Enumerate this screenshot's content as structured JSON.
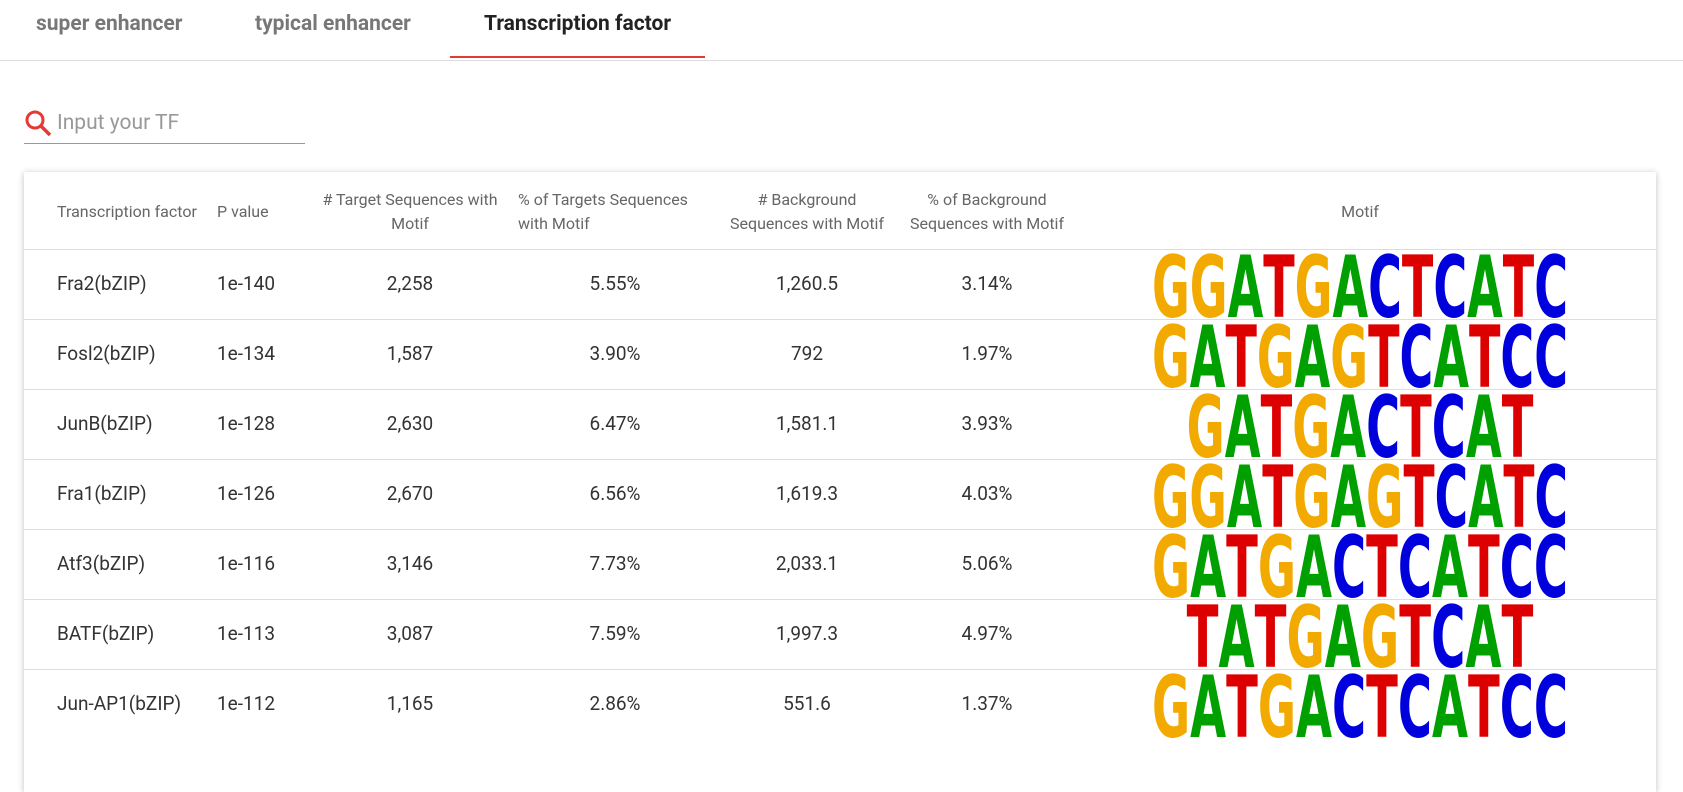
{
  "tabs": [
    {
      "label": "super enhancer",
      "active": false
    },
    {
      "label": "typical enhancer",
      "active": false
    },
    {
      "label": "Transcription factor",
      "active": true
    }
  ],
  "search": {
    "placeholder": "Input your TF"
  },
  "table": {
    "columns": [
      "Transcription factor",
      "P value",
      "# Target Sequences with Motif",
      "% of Targets Sequences with Motif",
      "# Background Sequences with Motif",
      "% of Background Sequences with Motif",
      "Motif"
    ],
    "rows": [
      [
        "Fra2(bZIP)",
        "1e-140",
        "2,258",
        "5.55%",
        "1,260.5",
        "3.14%",
        "GGATGACTCATC"
      ],
      [
        "Fosl2(bZIP)",
        "1e-134",
        "1,587",
        "3.90%",
        "792",
        "1.97%",
        "GATGAGTCATCC"
      ],
      [
        "JunB(bZIP)",
        "1e-128",
        "2,630",
        "6.47%",
        "1,581.1",
        "3.93%",
        "GATGACTCAT"
      ],
      [
        "Fra1(bZIP)",
        "1e-126",
        "2,670",
        "6.56%",
        "1,619.3",
        "4.03%",
        "GGATGAGTCATC"
      ],
      [
        "Atf3(bZIP)",
        "1e-116",
        "3,146",
        "7.73%",
        "2,033.1",
        "5.06%",
        "GATGACTCATCC"
      ],
      [
        "BATF(bZIP)",
        "1e-113",
        "3,087",
        "7.59%",
        "1,997.3",
        "4.97%",
        "TATGAGTCAT"
      ],
      [
        "Jun-AP1(bZIP)",
        "1e-112",
        "1,165",
        "2.86%",
        "551.6",
        "1.37%",
        "GATGACTCATCC"
      ]
    ]
  }
}
